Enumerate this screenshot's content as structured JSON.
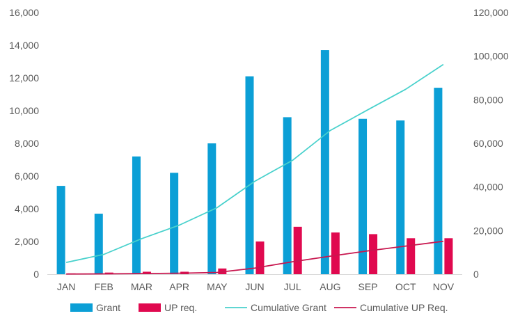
{
  "chart_data": {
    "type": "bar",
    "categories": [
      "JAN",
      "FEB",
      "MAR",
      "APR",
      "MAY",
      "JUN",
      "JUL",
      "AUG",
      "SEP",
      "OCT",
      "NOV"
    ],
    "series": [
      {
        "name": "Grant",
        "kind": "bar",
        "axis": "left",
        "color": "#0b9fd6",
        "values": [
          5400,
          3700,
          7200,
          6200,
          8000,
          12100,
          9600,
          13700,
          9500,
          9400,
          11400
        ]
      },
      {
        "name": "UP req.",
        "kind": "bar",
        "axis": "left",
        "color": "#e0094f",
        "values": [
          50,
          100,
          150,
          150,
          350,
          2000,
          2900,
          2550,
          2450,
          2200,
          2200
        ]
      },
      {
        "name": "Cumulative Grant",
        "kind": "line",
        "axis": "right",
        "color": "#48d1cc",
        "values": [
          5400,
          9100,
          16300,
          22500,
          30500,
          42600,
          52200,
          65900,
          75400,
          84800,
          96200
        ]
      },
      {
        "name": "Cumulative UP Req.",
        "kind": "line",
        "axis": "right",
        "color": "#c8174f",
        "values": [
          50,
          150,
          300,
          450,
          800,
          2800,
          5700,
          8250,
          10700,
          12900,
          15100
        ]
      }
    ],
    "left_axis": {
      "min": 0,
      "max": 16000,
      "step": 2000,
      "tick_labels": [
        "0",
        "2,000",
        "4,000",
        "6,000",
        "8,000",
        "10,000",
        "12,000",
        "14,000",
        "16,000"
      ]
    },
    "right_axis": {
      "min": 0,
      "max": 120000,
      "step": 20000,
      "tick_labels": [
        "0",
        "20,000",
        "40,000",
        "60,000",
        "80,000",
        "100,000",
        "120,000"
      ]
    },
    "grid": false,
    "legend_position": "bottom"
  }
}
